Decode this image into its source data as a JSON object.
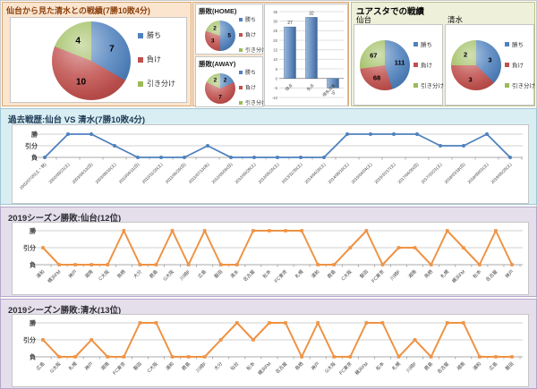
{
  "legend_labels": [
    "勝ち",
    "負け",
    "引き分け"
  ],
  "colors": {
    "win": "#4f81bd",
    "lose": "#c0504d",
    "draw": "#9bbb59",
    "history_line": "#4f81bd",
    "season_line": "#ee9344"
  },
  "panels": {
    "yuasta_title": "ユアスタでの戦績"
  },
  "chart_data": [
    {
      "id": "h2h",
      "type": "pie",
      "title": "仙台から見た清水との戦績(7勝10敗4分)",
      "labels": [
        "勝ち",
        "負け",
        "引き分け"
      ],
      "values": [
        7,
        10,
        4
      ]
    },
    {
      "id": "home",
      "type": "pie",
      "title": "勝敗(HOME)",
      "labels": [
        "勝ち",
        "負け",
        "引き分け"
      ],
      "values": [
        5,
        3,
        2
      ]
    },
    {
      "id": "away",
      "type": "pie",
      "title": "勝敗(AWAY)",
      "labels": [
        "勝ち",
        "負け",
        "引き分け"
      ],
      "values": [
        2,
        7,
        2
      ]
    },
    {
      "id": "goals",
      "type": "bar",
      "categories": [
        "得点",
        "失点",
        "得失点差"
      ],
      "values": [
        27,
        32,
        -5
      ],
      "ylim": [
        -10,
        35
      ],
      "ytick_step": 5
    },
    {
      "id": "yu-sendai",
      "type": "pie",
      "title": "仙台",
      "labels": [
        "勝ち",
        "負け",
        "引き分け"
      ],
      "values": [
        111,
        68,
        67
      ]
    },
    {
      "id": "yu-shimizu",
      "type": "pie",
      "title": "清水",
      "labels": [
        "勝ち",
        "負け",
        "引き分け"
      ],
      "values": [
        3,
        3,
        2
      ]
    },
    {
      "id": "history",
      "type": "line",
      "title": "過去戦歴:仙台 VS 清水(7勝10敗4分)",
      "yticks": [
        "勝",
        "引分",
        "負"
      ],
      "result_scale": {
        "2": "勝",
        "1": "引分",
        "0": "負"
      },
      "x": [
        "2002/07/20(土・祝)",
        "2002/09/21(土)",
        "2003/04/13(日)",
        "2003/08/16(土)",
        "2010/04/11(日)",
        "2010/11/20(土)",
        "2011/06/26(日)",
        "2011/07/13(水)",
        "2012/05/06(日)",
        "2012/09/29(土)",
        "2013/05/25(土)",
        "2013/11/30(土)",
        "2014/04/26(土)",
        "2014/08/16(土)",
        "2015/04/04(土)",
        "2015/10/17(土)",
        "2017/04/30(日)",
        "2017/10/21(土)",
        "2018/03/18(日)",
        "2018/09/01(土)",
        "2019/05/25(土)"
      ],
      "values": [
        0,
        2,
        2,
        1,
        0,
        0,
        0,
        1,
        0,
        0,
        0,
        0,
        0,
        2,
        2,
        2,
        2,
        1,
        1,
        2,
        0
      ]
    },
    {
      "id": "sendai2019",
      "type": "line",
      "title": "2019シーズン勝敗:仙台(12位)",
      "yticks": [
        "勝",
        "引分",
        "負"
      ],
      "result_scale": {
        "2": "勝",
        "1": "引分",
        "0": "負"
      },
      "x": [
        "浦和",
        "横浜FM",
        "神戸",
        "湘南",
        "C大阪",
        "鳥栖",
        "大分",
        "鹿島",
        "G大阪",
        "川崎F",
        "広島",
        "磐田",
        "清水",
        "名古屋",
        "松本",
        "FC東京",
        "札幌",
        "浦和",
        "鹿島",
        "C大阪",
        "磐田",
        "FC東京",
        "川崎F",
        "湘南",
        "鳥栖",
        "札幌",
        "横浜FM",
        "松本",
        "名古屋",
        "神戸"
      ],
      "values": [
        1,
        0,
        0,
        0,
        0,
        2,
        0,
        0,
        2,
        0,
        2,
        0,
        0,
        2,
        2,
        2,
        2,
        0,
        0,
        1,
        2,
        0,
        1,
        1,
        0,
        2,
        1,
        0,
        2,
        0
      ]
    },
    {
      "id": "shimizu2019",
      "type": "line",
      "title": "2019シーズン勝敗:清水(13位)",
      "yticks": [
        "勝",
        "引分",
        "負"
      ],
      "result_scale": {
        "2": "勝",
        "1": "引分",
        "0": "負"
      },
      "x": [
        "広島",
        "G大阪",
        "札幌",
        "神戸",
        "湘南",
        "FC東京",
        "磐田",
        "C大阪",
        "浦和",
        "鹿島",
        "川崎F",
        "大分",
        "仙台",
        "松本",
        "横浜FM",
        "名古屋",
        "鳥栖",
        "神戸",
        "G大阪",
        "FC東京",
        "横浜FM",
        "松本",
        "札幌",
        "川崎F",
        "鹿島",
        "名古屋",
        "湘南",
        "浦和",
        "広島",
        "磐田"
      ],
      "values": [
        1,
        0,
        0,
        1,
        0,
        0,
        2,
        2,
        0,
        0,
        0,
        1,
        2,
        1,
        2,
        2,
        0,
        2,
        0,
        0,
        2,
        2,
        0,
        1,
        0,
        2,
        2,
        0,
        0,
        0
      ]
    }
  ]
}
